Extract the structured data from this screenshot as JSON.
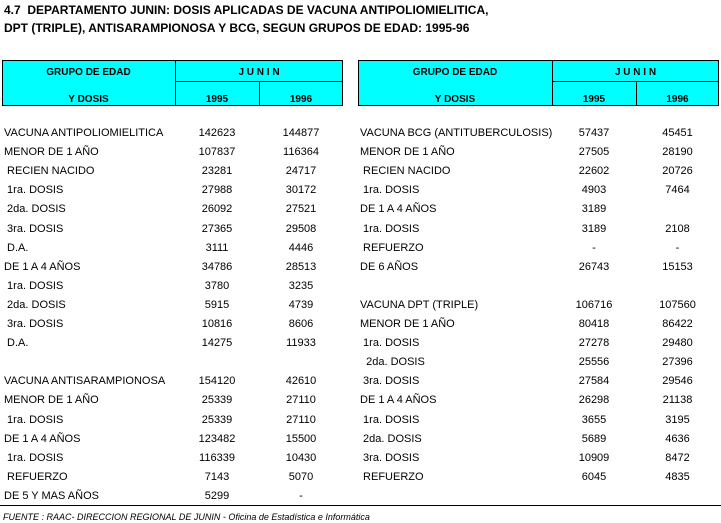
{
  "title": [
    "4.7  DEPARTAMENTO JUNIN: DOSIS APLICADAS DE VACUNA ANTIPOLIOMIELITICA,",
    "DPT (TRIPLE), ANTISARAMPIONOSA Y BCG, SEGUN GRUPOS DE EDAD: 1995-96"
  ],
  "tables": [
    {
      "header": {
        "group_top": "GRUPO DE EDAD",
        "group_bottom": "Y DOSIS",
        "region": "J U N I N",
        "years": [
          1995,
          1996
        ]
      },
      "blocks": [
        [
          [
            "VACUNA ANTIPOLIOMIELITICA",
            142623,
            144877
          ],
          [
            "MENOR DE 1 AÑO",
            107837,
            116364
          ],
          [
            " RECIEN NACIDO",
            23281,
            24717
          ],
          [
            " 1ra. DOSIS",
            27988,
            30172
          ],
          [
            " 2da. DOSIS",
            26092,
            27521
          ],
          [
            " 3ra. DOSIS",
            27365,
            29508
          ],
          [
            " D.A.",
            3111,
            4446
          ],
          [
            "DE 1 A 4 AÑOS",
            34786,
            28513
          ],
          [
            " 1ra. DOSIS",
            3780,
            3235
          ],
          [
            " 2da. DOSIS",
            5915,
            4739
          ],
          [
            " 3ra. DOSIS",
            10816,
            8606
          ],
          [
            " D.A.",
            14275,
            11933
          ]
        ],
        [
          [
            "VACUNA ANTISARAMPIONOSA",
            154120,
            42610
          ],
          [
            "MENOR DE 1 AÑO",
            25339,
            27110
          ],
          [
            " 1ra. DOSIS",
            25339,
            27110
          ],
          [
            "DE 1 A 4 AÑOS",
            123482,
            15500
          ],
          [
            " 1ra. DOSIS",
            116339,
            10430
          ],
          [
            " REFUERZO",
            7143,
            5070
          ],
          [
            "DE 5 Y MAS AÑOS",
            5299,
            "-"
          ]
        ]
      ]
    },
    {
      "header": {
        "group_top": "GRUPO DE EDAD",
        "group_bottom": "Y DOSIS",
        "region": "J U N I N",
        "years": [
          1995,
          1996
        ]
      },
      "blocks": [
        [
          [
            "VACUNA BCG (ANTITUBERCULOSIS)",
            57437,
            45451
          ],
          [
            "MENOR DE 1 AÑO",
            27505,
            28190
          ],
          [
            " RECIEN NACIDO",
            22602,
            20726
          ],
          [
            " 1ra. DOSIS",
            4903,
            7464
          ],
          [
            "DE 1 A 4 AÑOS",
            3189,
            null
          ],
          [
            " 1ra. DOSIS",
            3189,
            2108
          ],
          [
            " REFUERZO",
            "-",
            "-"
          ],
          [
            "DE 6 AÑOS",
            26743,
            15153
          ]
        ],
        [
          [
            "VACUNA DPT (TRIPLE)",
            106716,
            107560
          ],
          [
            "MENOR DE 1 AÑO",
            80418,
            86422
          ],
          [
            " 1ra. DOSIS",
            27278,
            29480
          ],
          [
            "  2da. DOSIS",
            25556,
            27396
          ],
          [
            " 3ra. DOSIS",
            27584,
            29546
          ],
          [
            "DE 1 A 4 AÑOS",
            26298,
            21138
          ],
          [
            " 1ra. DOSIS",
            3655,
            3195
          ],
          [
            " 2da. DOSIS",
            5689,
            4636
          ],
          [
            " 3ra. DOSIS",
            10909,
            8472
          ],
          [
            " REFUERZO",
            6045,
            4835
          ]
        ]
      ]
    }
  ],
  "footer": "FUENTE : RAAC- DIRECCION REGIONAL DE JUNIN - Oficina de Estadística e Informática"
}
